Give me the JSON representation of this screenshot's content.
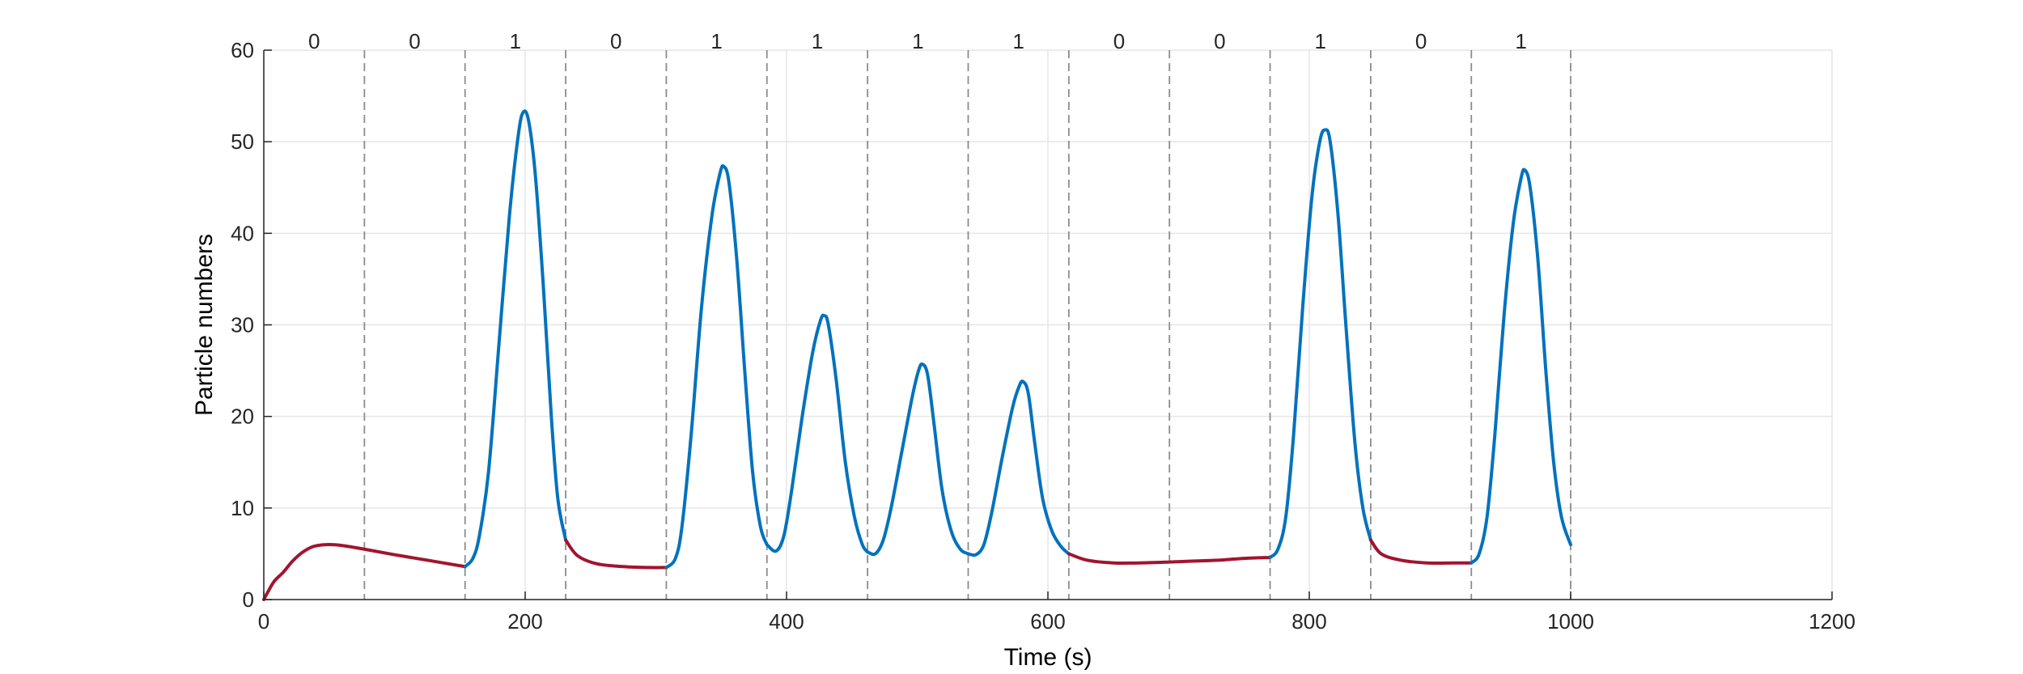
{
  "chart_data": {
    "type": "line",
    "xlabel": "Time (s)",
    "ylabel": "Particle numbers",
    "xlim": [
      0,
      1200
    ],
    "ylim": [
      0,
      60
    ],
    "xticks": [
      "0",
      "200",
      "400",
      "600",
      "800",
      "1000",
      "1200"
    ],
    "yticks": [
      "0",
      "10",
      "20",
      "30",
      "40",
      "50",
      "60"
    ],
    "grid": true,
    "colors": {
      "state_0": "#a2142f",
      "state_1": "#0072bd",
      "boundary": "#8c8c8c"
    },
    "segment_labels": [
      "0",
      "0",
      "1",
      "0",
      "1",
      "1",
      "1",
      "1",
      "0",
      "0",
      "1",
      "0",
      "1"
    ],
    "segment_boundaries": [
      77,
      154,
      231,
      308,
      385,
      462,
      539,
      616,
      693,
      770,
      847,
      924,
      1000
    ],
    "series": [
      {
        "state": "0",
        "color": "#a2142f",
        "points": [
          [
            0,
            0
          ],
          [
            3,
            0.8
          ],
          [
            8,
            2
          ],
          [
            15,
            3
          ],
          [
            22,
            4.2
          ],
          [
            30,
            5.2
          ],
          [
            38,
            5.8
          ],
          [
            48,
            6
          ],
          [
            60,
            5.9
          ],
          [
            77,
            5.5
          ],
          [
            100,
            4.9
          ],
          [
            125,
            4.3
          ],
          [
            154,
            3.6
          ]
        ]
      },
      {
        "state": "1",
        "color": "#0072bd",
        "points": [
          [
            154,
            3.6
          ],
          [
            160,
            4.5
          ],
          [
            165,
            7
          ],
          [
            172,
            14
          ],
          [
            180,
            28
          ],
          [
            188,
            42
          ],
          [
            195,
            51
          ],
          [
            199,
            53.3
          ],
          [
            203,
            52
          ],
          [
            208,
            46
          ],
          [
            214,
            34
          ],
          [
            220,
            20
          ],
          [
            225,
            11
          ],
          [
            231,
            6.5
          ]
        ]
      },
      {
        "state": "0",
        "color": "#a2142f",
        "points": [
          [
            231,
            6.5
          ],
          [
            240,
            4.8
          ],
          [
            255,
            3.9
          ],
          [
            275,
            3.6
          ],
          [
            295,
            3.5
          ],
          [
            308,
            3.5
          ]
        ]
      },
      {
        "state": "1",
        "color": "#0072bd",
        "points": [
          [
            308,
            3.5
          ],
          [
            315,
            4.5
          ],
          [
            320,
            8
          ],
          [
            327,
            18
          ],
          [
            335,
            32
          ],
          [
            343,
            42
          ],
          [
            349,
            46.5
          ],
          [
            352,
            47.3
          ],
          [
            356,
            45.5
          ],
          [
            362,
            37
          ],
          [
            368,
            25
          ],
          [
            374,
            14
          ],
          [
            380,
            8
          ],
          [
            385,
            6
          ]
        ]
      },
      {
        "state": "1",
        "color": "#0072bd",
        "points": [
          [
            385,
            6
          ],
          [
            392,
            5.3
          ],
          [
            398,
            7
          ],
          [
            404,
            12
          ],
          [
            412,
            20
          ],
          [
            420,
            27
          ],
          [
            426,
            30.5
          ],
          [
            429,
            31
          ],
          [
            432,
            30
          ],
          [
            438,
            24
          ],
          [
            445,
            15
          ],
          [
            452,
            9
          ],
          [
            458,
            6
          ],
          [
            462,
            5.2
          ]
        ]
      },
      {
        "state": "1",
        "color": "#0072bd",
        "points": [
          [
            462,
            5.2
          ],
          [
            468,
            5
          ],
          [
            474,
            6.5
          ],
          [
            480,
            10
          ],
          [
            488,
            16
          ],
          [
            496,
            22
          ],
          [
            501,
            25
          ],
          [
            504,
            25.7
          ],
          [
            508,
            24.5
          ],
          [
            513,
            19
          ],
          [
            519,
            12
          ],
          [
            526,
            7.5
          ],
          [
            533,
            5.5
          ],
          [
            539,
            5
          ]
        ]
      },
      {
        "state": "1",
        "color": "#0072bd",
        "points": [
          [
            539,
            5
          ],
          [
            545,
            4.9
          ],
          [
            551,
            6
          ],
          [
            557,
            9.5
          ],
          [
            565,
            15.5
          ],
          [
            573,
            21
          ],
          [
            578,
            23.3
          ],
          [
            581,
            23.8
          ],
          [
            585,
            22.5
          ],
          [
            590,
            17
          ],
          [
            596,
            11
          ],
          [
            603,
            7.5
          ],
          [
            610,
            5.8
          ],
          [
            616,
            5
          ]
        ]
      },
      {
        "state": "0",
        "color": "#a2142f",
        "points": [
          [
            616,
            5
          ],
          [
            630,
            4.3
          ],
          [
            650,
            4
          ],
          [
            670,
            4
          ],
          [
            693,
            4.1
          ],
          [
            710,
            4.2
          ],
          [
            730,
            4.3
          ],
          [
            750,
            4.5
          ],
          [
            770,
            4.6
          ]
        ]
      },
      {
        "state": "1",
        "color": "#0072bd",
        "points": [
          [
            770,
            4.6
          ],
          [
            776,
            5.5
          ],
          [
            782,
            9
          ],
          [
            788,
            18
          ],
          [
            795,
            32
          ],
          [
            802,
            44
          ],
          [
            808,
            50
          ],
          [
            812,
            51.3
          ],
          [
            816,
            50
          ],
          [
            822,
            42
          ],
          [
            828,
            30
          ],
          [
            835,
            17
          ],
          [
            841,
            10
          ],
          [
            847,
            6.5
          ]
        ]
      },
      {
        "state": "0",
        "color": "#a2142f",
        "points": [
          [
            847,
            6.5
          ],
          [
            855,
            5
          ],
          [
            870,
            4.3
          ],
          [
            890,
            4
          ],
          [
            910,
            4
          ],
          [
            924,
            4
          ]
        ]
      },
      {
        "state": "1",
        "color": "#0072bd",
        "points": [
          [
            924,
            4
          ],
          [
            930,
            5
          ],
          [
            936,
            9
          ],
          [
            942,
            18
          ],
          [
            949,
            31
          ],
          [
            956,
            41
          ],
          [
            962,
            46
          ],
          [
            965,
            46.9
          ],
          [
            969,
            45
          ],
          [
            975,
            37
          ],
          [
            981,
            25
          ],
          [
            987,
            15
          ],
          [
            993,
            9
          ],
          [
            1000,
            6
          ]
        ]
      }
    ]
  }
}
